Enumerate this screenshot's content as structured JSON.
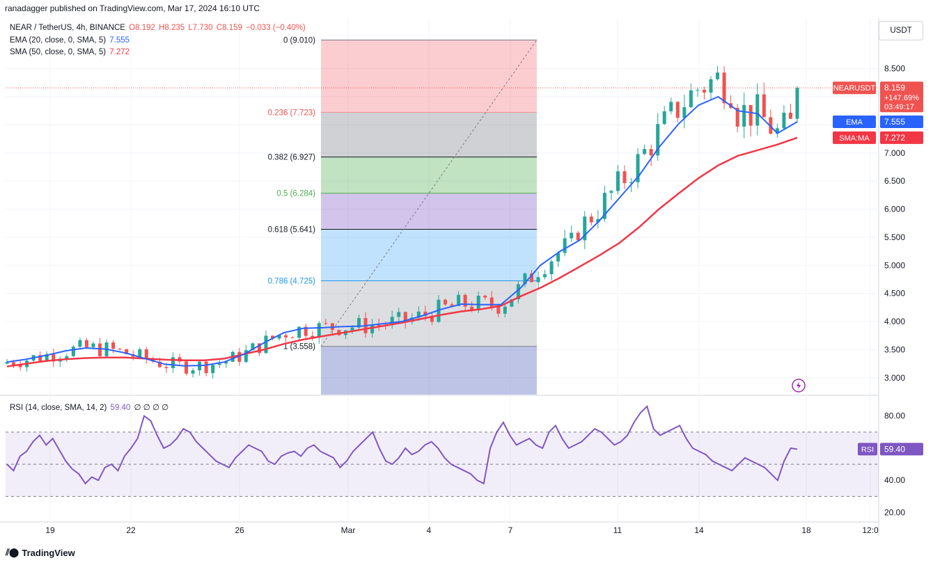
{
  "attribution": "ranadagger published on TradingView.com, Mar 17, 2024 16:10 UTC",
  "legend": {
    "symbol": "NEAR / TetherUS, 4h, BINANCE",
    "open": "O8.192",
    "high": "H8.235",
    "low": "L7.730",
    "close": "C8.159",
    "change": "−0.033 (−0.40%)",
    "ema_label": "EMA (20, close, 0, SMA, 5)",
    "ema_value": "7.555",
    "sma_label": "SMA (50, close, 0, SMA, 5)",
    "sma_value": "7.272",
    "rsi_label": "RSI (14, close, SMA, 14, 2)",
    "rsi_value": "59.40",
    "rsi_extra": "∅ ∅ ∅ ∅"
  },
  "unit_button": "USDT",
  "footer_brand": "TradingView",
  "icons": {
    "brand": "tradingview-logo-icon",
    "flash": "lightning-icon"
  },
  "colors": {
    "up": "#26a69a",
    "down": "#ef5350",
    "ema": "#2962ff",
    "sma": "#f23645",
    "rsi": "#7e57c2"
  },
  "chart_data": [
    {
      "type": "candlestick",
      "ylim": [
        2.7,
        9.4
      ],
      "y_ticks": [
        "8.500",
        "8.000",
        "7.500",
        "7.000",
        "6.500",
        "6.000",
        "5.500",
        "5.000",
        "4.500",
        "4.000",
        "3.500",
        "3.000"
      ],
      "x_ticks": [
        "19",
        "22",
        "26",
        "Mar",
        "4",
        "7",
        "11",
        "14",
        "18",
        "12:0"
      ],
      "price_tags": [
        {
          "label": "NEARUSDT",
          "value": "8.159",
          "extra": "+147.69%",
          "extra2": "03:49:17"
        },
        {
          "label": "EMA",
          "value": "7.555"
        },
        {
          "label": "SMA:MA",
          "value": "7.272"
        }
      ],
      "fib_levels": [
        {
          "ratio": "0",
          "price": "(9.010)",
          "value": 9.01
        },
        {
          "ratio": "0.236",
          "price": "(7.723)",
          "value": 7.723
        },
        {
          "ratio": "0.382",
          "price": "(6.927)",
          "value": 6.927
        },
        {
          "ratio": "0.5",
          "price": "(6.284)",
          "value": 6.284
        },
        {
          "ratio": "0.618",
          "price": "(5.641)",
          "value": 5.641
        },
        {
          "ratio": "0.786",
          "price": "(4.725)",
          "value": 4.725
        },
        {
          "ratio": "1",
          "price": "(3.558)",
          "value": 3.558
        }
      ],
      "ema_points": [
        3.28,
        3.33,
        3.4,
        3.48,
        3.53,
        3.51,
        3.44,
        3.34,
        3.24,
        3.21,
        3.22,
        3.28,
        3.42,
        3.62,
        3.8,
        3.88,
        3.89,
        3.91,
        3.92,
        3.96,
        4.0,
        4.1,
        4.22,
        4.31,
        4.3,
        4.3,
        4.6,
        5.0,
        5.25,
        5.45,
        5.8,
        6.2,
        6.6,
        7.1,
        7.52,
        7.85,
        8.0,
        7.75,
        7.7,
        7.35,
        7.555
      ],
      "sma_points": [
        3.2,
        3.25,
        3.3,
        3.33,
        3.35,
        3.36,
        3.36,
        3.34,
        3.32,
        3.31,
        3.31,
        3.34,
        3.42,
        3.5,
        3.6,
        3.68,
        3.74,
        3.8,
        3.86,
        3.92,
        3.98,
        4.05,
        4.12,
        4.18,
        4.22,
        4.28,
        4.45,
        4.6,
        4.78,
        4.98,
        5.18,
        5.4,
        5.68,
        6.0,
        6.28,
        6.55,
        6.78,
        6.95,
        7.05,
        7.15,
        7.272
      ],
      "last_price": 8.159
    },
    {
      "type": "line",
      "name": "RSI",
      "ylim": [
        15,
        92
      ],
      "y_ticks": [
        "80.00",
        "60.00",
        "40.00",
        "20.00"
      ],
      "bands": [
        70,
        50,
        30
      ],
      "values": [
        50,
        46,
        55,
        58,
        64,
        68,
        62,
        66,
        59,
        52,
        47,
        44,
        38,
        42,
        40,
        48,
        50,
        46,
        55,
        60,
        66,
        80,
        77,
        68,
        60,
        62,
        66,
        72,
        70,
        64,
        60,
        56,
        52,
        50,
        48,
        54,
        58,
        62,
        60,
        58,
        52,
        50,
        55,
        57,
        58,
        55,
        60,
        62,
        58,
        56,
        54,
        48,
        52,
        58,
        62,
        66,
        70,
        60,
        52,
        50,
        54,
        60,
        56,
        58,
        62,
        64,
        60,
        54,
        50,
        48,
        46,
        44,
        40,
        38,
        60,
        70,
        76,
        68,
        62,
        64,
        66,
        62,
        60,
        70,
        74,
        66,
        60,
        62,
        64,
        68,
        72,
        70,
        66,
        62,
        64,
        68,
        76,
        82,
        86,
        72,
        68,
        70,
        72,
        74,
        66,
        60,
        58,
        56,
        52,
        50,
        48,
        46,
        50,
        54,
        52,
        50,
        48,
        44,
        40,
        52,
        60,
        59.4
      ]
    }
  ]
}
